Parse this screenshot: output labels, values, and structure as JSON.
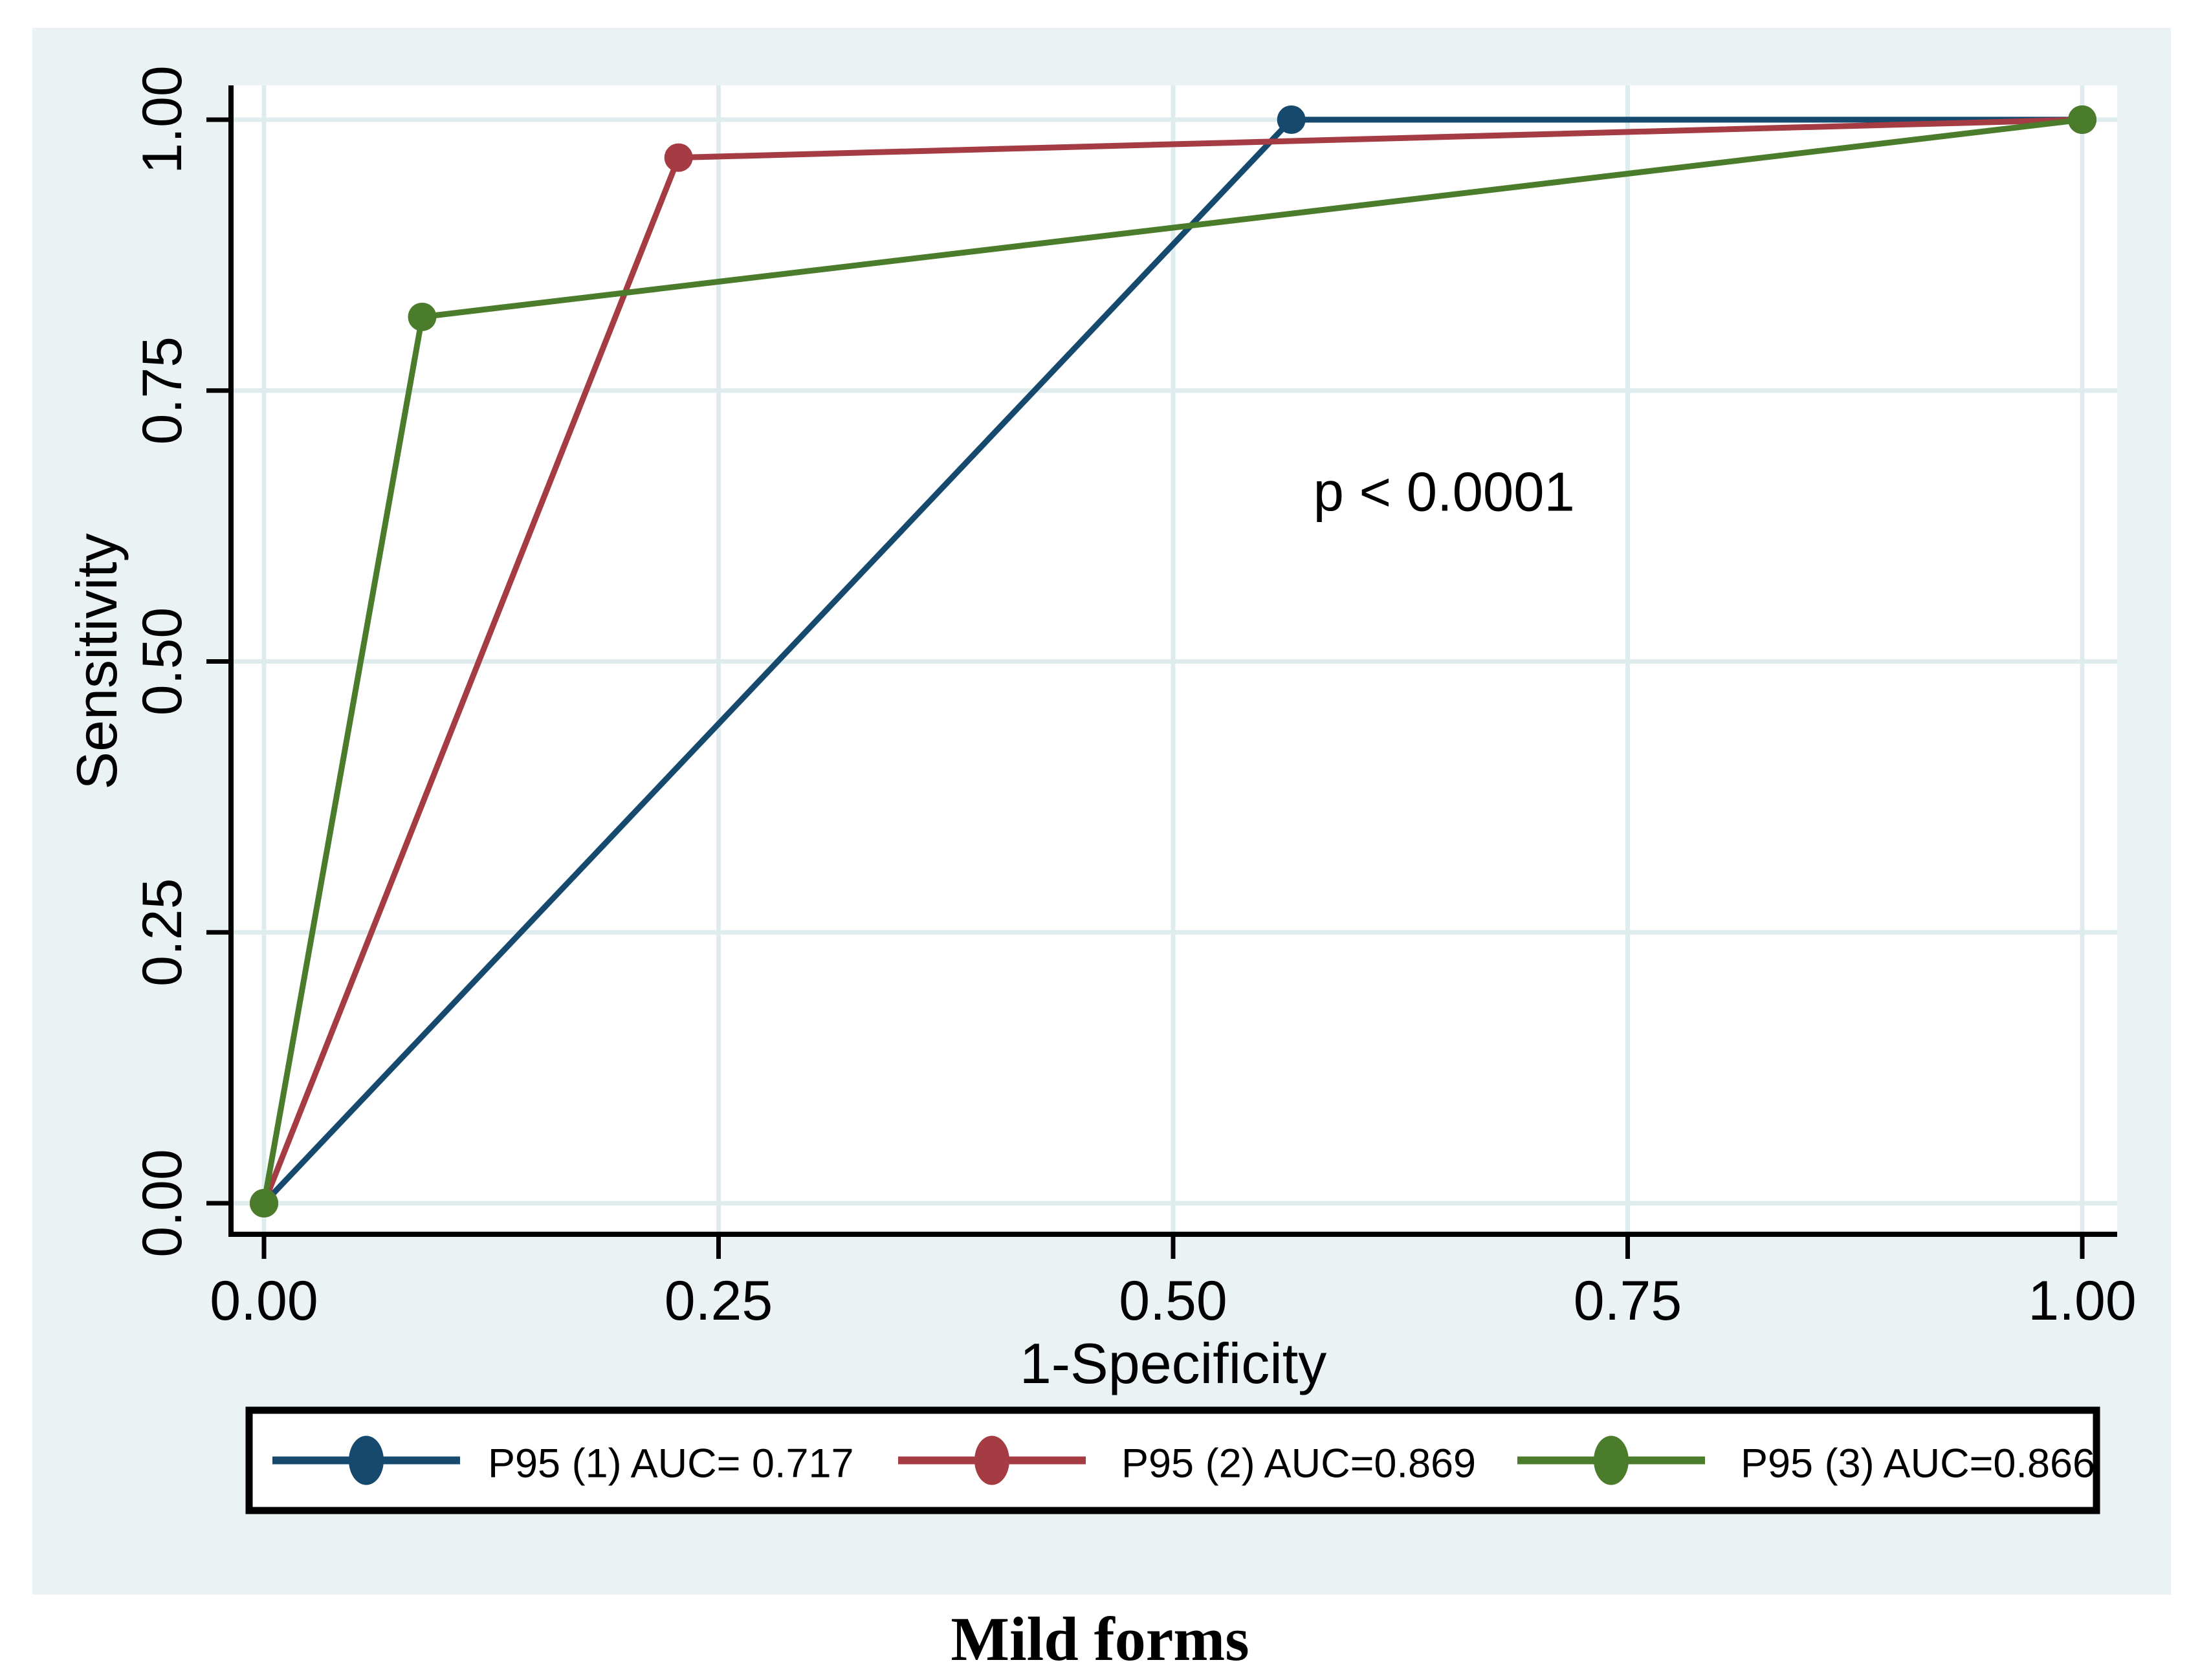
{
  "figure": {
    "caption": "Mild forms",
    "background_color": "#ffffff",
    "graph_background_color": "#eaf2f3",
    "plot_background_color": "#ffffff",
    "grid_color": "#dfecee",
    "axis_color": "#000000",
    "legend_background_color": "#ffffff",
    "legend_border_color": "#000000"
  },
  "chart_data": {
    "type": "line",
    "subtype": "roc-curves",
    "title": "",
    "xlabel": "1-Specificity",
    "ylabel": "Sensitivity",
    "xlim": [
      0,
      1
    ],
    "ylim": [
      0,
      1
    ],
    "grid": true,
    "legend_position": "bottom",
    "xticks": {
      "values": [
        0,
        0.25,
        0.5,
        0.75,
        1
      ],
      "labels": [
        "0.00",
        "0.25",
        "0.50",
        "0.75",
        "1.00"
      ]
    },
    "yticks": {
      "values": [
        0,
        0.25,
        0.5,
        0.75,
        1
      ],
      "labels": [
        "0.00",
        "0.25",
        "0.50",
        "0.75",
        "1.00"
      ]
    },
    "series": [
      {
        "name": "P95 (1) AUC= 0.717",
        "auc": 0.717,
        "color": "#15496d",
        "points": [
          [
            0,
            0
          ],
          [
            0.565,
            1.0
          ],
          [
            1.0,
            1.0
          ]
        ]
      },
      {
        "name": "P95 (2) AUC=0.869",
        "auc": 0.869,
        "color": "#a53b43",
        "points": [
          [
            0,
            0
          ],
          [
            0.228,
            0.965
          ],
          [
            1.0,
            1.0
          ]
        ]
      },
      {
        "name": "P95 (3) AUC=0.866",
        "auc": 0.866,
        "color": "#4b7c2b",
        "points": [
          [
            0,
            0
          ],
          [
            0.087,
            0.818
          ],
          [
            1.0,
            1.0
          ]
        ]
      }
    ],
    "annotations": [
      {
        "text": "p < 0.0001",
        "x": 0.649,
        "y": 0.657
      }
    ]
  }
}
